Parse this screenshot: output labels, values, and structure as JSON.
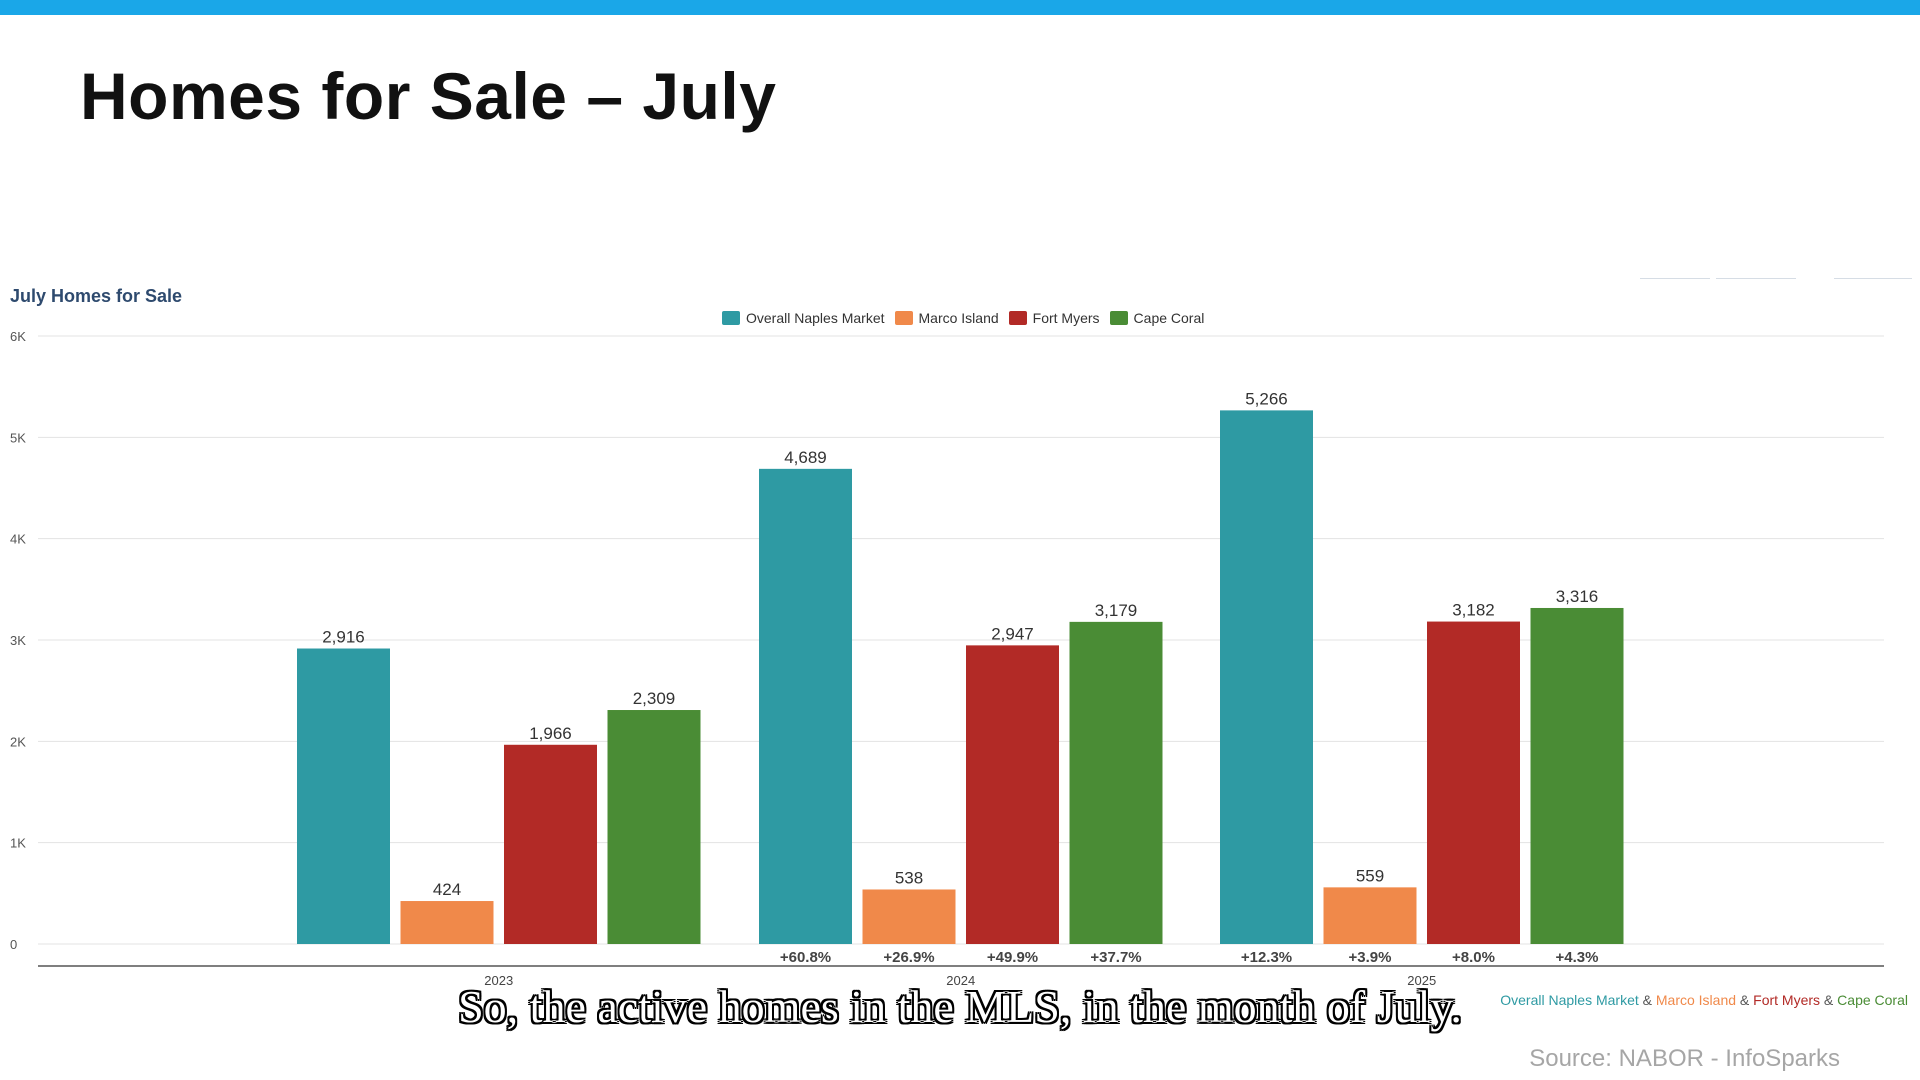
{
  "slide": {
    "title": "Homes for Sale – July",
    "caption": "So, the active homes in the MLS, in the month of July.",
    "source": "Source:  NABOR - InfoSparks"
  },
  "footnote": {
    "parts": [
      {
        "text": "Overall Naples Market",
        "color": "#2e9aa3"
      },
      {
        "text": " & ",
        "color": "#555555"
      },
      {
        "text": "Marco Island",
        "color": "#f0894a"
      },
      {
        "text": " & ",
        "color": "#555555"
      },
      {
        "text": "Fort Myers",
        "color": "#b22a26"
      },
      {
        "text": " & ",
        "color": "#555555"
      },
      {
        "text": "Cape Coral",
        "color": "#4a8c35"
      }
    ]
  },
  "chart_data": {
    "type": "bar",
    "title": "July Homes for Sale",
    "categories": [
      "2023",
      "2024",
      "2025"
    ],
    "ylim": [
      0,
      6000
    ],
    "yticks": [
      0,
      1000,
      2000,
      3000,
      4000,
      5000,
      6000
    ],
    "ytick_labels": [
      "0",
      "1K",
      "2K",
      "3K",
      "4K",
      "5K",
      "6K"
    ],
    "grid": true,
    "legend_position": "top-center",
    "series": [
      {
        "name": "Overall Naples Market",
        "color": "#2e9aa3",
        "values": [
          2916,
          4689,
          5266
        ],
        "value_labels": [
          "2,916",
          "4,689",
          "5,266"
        ],
        "change_labels": [
          "",
          "+60.8%",
          "+12.3%"
        ]
      },
      {
        "name": "Marco Island",
        "color": "#f0894a",
        "values": [
          424,
          538,
          559
        ],
        "value_labels": [
          "424",
          "538",
          "559"
        ],
        "change_labels": [
          "",
          "+26.9%",
          "+3.9%"
        ]
      },
      {
        "name": "Fort Myers",
        "color": "#b22a26",
        "values": [
          1966,
          2947,
          3182
        ],
        "value_labels": [
          "1,966",
          "2,947",
          "3,182"
        ],
        "change_labels": [
          "",
          "+49.9%",
          "+8.0%"
        ]
      },
      {
        "name": "Cape Coral",
        "color": "#4a8c35",
        "values": [
          2309,
          3179,
          3316
        ],
        "value_labels": [
          "2,309",
          "3,179",
          "3,316"
        ],
        "change_labels": [
          "",
          "+37.7%",
          "+4.3%"
        ]
      }
    ]
  }
}
